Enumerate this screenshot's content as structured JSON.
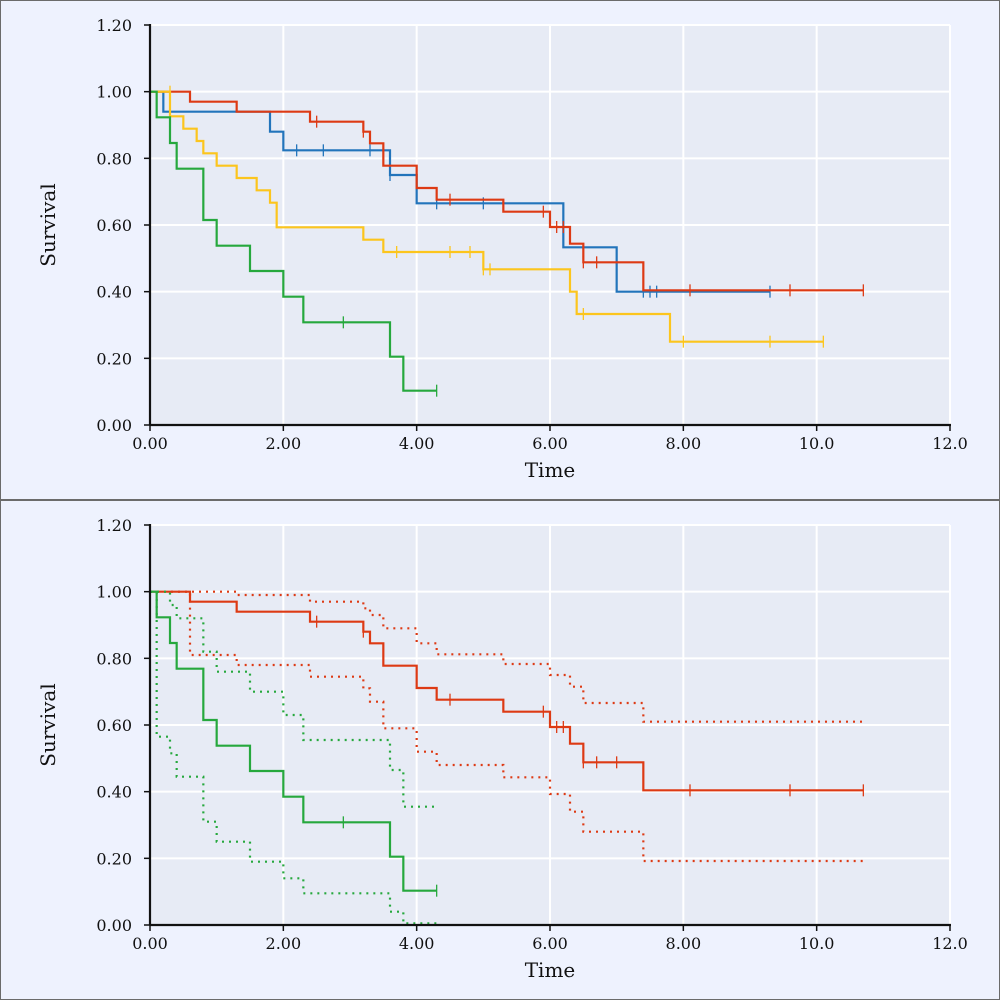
{
  "colors": {
    "background": "#eef2fe",
    "plot_background": "#e7ebf5",
    "grid": "#ffffff",
    "red": "#dd3a14",
    "blue": "#2274bb",
    "yellow": "#fcc51d",
    "green": "#26a83d"
  },
  "chart_data": [
    {
      "type": "line",
      "subtype": "step",
      "xlabel": "Time",
      "ylabel": "Survival",
      "xlim": [
        0,
        12
      ],
      "ylim": [
        0,
        1.2
      ],
      "x_ticks": [
        "0.00",
        "2.00",
        "4.00",
        "6.00",
        "8.00",
        "10.0",
        "12.0"
      ],
      "y_ticks": [
        "0.00",
        "0.20",
        "0.40",
        "0.60",
        "0.80",
        "1.00",
        "1.20"
      ],
      "grid": true,
      "series": [
        {
          "color": "#2274bb",
          "style": "solid",
          "x": [
            0,
            0.2,
            1.8,
            2.0,
            3.6,
            4.0,
            6.2,
            6.5,
            7.0,
            9.3
          ],
          "y": [
            1.0,
            0.94,
            0.88,
            0.824,
            0.75,
            0.665,
            0.533,
            0.533,
            0.4,
            0.4
          ],
          "censored": [
            [
              2.2,
              0.824
            ],
            [
              2.6,
              0.824
            ],
            [
              3.3,
              0.824
            ],
            [
              3.6,
              0.75
            ],
            [
              4.3,
              0.665
            ],
            [
              5.0,
              0.665
            ],
            [
              7.4,
              0.4
            ],
            [
              7.5,
              0.4
            ],
            [
              7.6,
              0.4
            ],
            [
              9.3,
              0.4
            ]
          ]
        },
        {
          "color": "#dd3a14",
          "style": "solid",
          "x": [
            0,
            0.6,
            1.3,
            2.4,
            3.2,
            3.3,
            3.5,
            4.0,
            4.3,
            5.3,
            6.0,
            6.3,
            6.5,
            7.4,
            10.7
          ],
          "y": [
            1.0,
            0.97,
            0.94,
            0.91,
            0.88,
            0.845,
            0.778,
            0.711,
            0.676,
            0.64,
            0.594,
            0.544,
            0.488,
            0.404,
            0.404
          ],
          "censored": [
            [
              2.5,
              0.91
            ],
            [
              3.2,
              0.88
            ],
            [
              4.5,
              0.676
            ],
            [
              5.9,
              0.64
            ],
            [
              6.1,
              0.594
            ],
            [
              6.2,
              0.594
            ],
            [
              6.5,
              0.488
            ],
            [
              6.7,
              0.488
            ],
            [
              8.1,
              0.404
            ],
            [
              9.6,
              0.404
            ],
            [
              10.7,
              0.404
            ]
          ]
        },
        {
          "color": "#fcc51d",
          "style": "solid",
          "x": [
            0,
            0.3,
            0.5,
            0.7,
            0.8,
            1.0,
            1.3,
            1.6,
            1.8,
            1.9,
            3.2,
            3.5,
            5.0,
            6.3,
            6.4,
            7.8,
            10.1
          ],
          "y": [
            1.0,
            0.926,
            0.889,
            0.852,
            0.815,
            0.778,
            0.741,
            0.704,
            0.667,
            0.593,
            0.556,
            0.519,
            0.467,
            0.4,
            0.333,
            0.25,
            0.25
          ],
          "censored": [
            [
              0.3,
              1.0
            ],
            [
              3.7,
              0.519
            ],
            [
              4.5,
              0.519
            ],
            [
              4.8,
              0.519
            ],
            [
              5.0,
              0.467
            ],
            [
              5.1,
              0.467
            ],
            [
              6.5,
              0.333
            ],
            [
              8.0,
              0.25
            ],
            [
              9.3,
              0.25
            ],
            [
              10.1,
              0.25
            ]
          ]
        },
        {
          "color": "#26a83d",
          "style": "solid",
          "x": [
            0,
            0.1,
            0.3,
            0.4,
            0.8,
            1.0,
            1.5,
            2.0,
            2.3,
            3.6,
            3.8,
            4.3
          ],
          "y": [
            1.0,
            0.923,
            0.846,
            0.769,
            0.615,
            0.538,
            0.462,
            0.385,
            0.308,
            0.205,
            0.103,
            0.103
          ],
          "censored": [
            [
              2.9,
              0.308
            ],
            [
              4.3,
              0.103
            ]
          ]
        }
      ]
    },
    {
      "type": "line",
      "subtype": "step",
      "xlabel": "Time",
      "ylabel": "Survival",
      "xlim": [
        0,
        12
      ],
      "ylim": [
        0,
        1.2
      ],
      "x_ticks": [
        "0.00",
        "2.00",
        "4.00",
        "6.00",
        "8.00",
        "10.0",
        "12.0"
      ],
      "y_ticks": [
        "0.00",
        "0.20",
        "0.40",
        "0.60",
        "0.80",
        "1.00",
        "1.20"
      ],
      "grid": true,
      "series": [
        {
          "color": "#dd3a14",
          "style": "solid",
          "x": [
            0,
            0.6,
            1.3,
            2.4,
            3.2,
            3.3,
            3.5,
            4.0,
            4.3,
            5.3,
            6.0,
            6.3,
            6.5,
            7.4,
            10.7
          ],
          "y": [
            1.0,
            0.97,
            0.94,
            0.91,
            0.88,
            0.845,
            0.778,
            0.711,
            0.676,
            0.64,
            0.594,
            0.544,
            0.488,
            0.404,
            0.404
          ],
          "censored": [
            [
              2.5,
              0.91
            ],
            [
              3.2,
              0.88
            ],
            [
              4.5,
              0.676
            ],
            [
              5.9,
              0.64
            ],
            [
              6.1,
              0.594
            ],
            [
              6.2,
              0.594
            ],
            [
              6.5,
              0.488
            ],
            [
              6.7,
              0.488
            ],
            [
              7.0,
              0.488
            ],
            [
              8.1,
              0.404
            ],
            [
              9.6,
              0.404
            ],
            [
              10.7,
              0.404
            ]
          ]
        },
        {
          "color": "#dd3a14",
          "style": "dotted",
          "x": [
            0,
            0.6,
            1.3,
            2.4,
            3.2,
            3.3,
            3.5,
            4.0,
            4.3,
            5.3,
            6.0,
            6.3,
            6.5,
            7.4,
            10.7
          ],
          "y": [
            1.0,
            1.0,
            0.99,
            0.97,
            0.95,
            0.93,
            0.89,
            0.845,
            0.812,
            0.783,
            0.75,
            0.715,
            0.666,
            0.61,
            0.61
          ]
        },
        {
          "color": "#dd3a14",
          "style": "dotted",
          "x": [
            0,
            0.6,
            1.3,
            2.4,
            3.2,
            3.3,
            3.5,
            4.0,
            4.3,
            5.3,
            6.0,
            6.3,
            6.5,
            7.4,
            10.7
          ],
          "y": [
            1.0,
            0.81,
            0.78,
            0.745,
            0.71,
            0.67,
            0.59,
            0.52,
            0.48,
            0.443,
            0.393,
            0.34,
            0.28,
            0.192,
            0.192
          ]
        },
        {
          "color": "#26a83d",
          "style": "solid",
          "x": [
            0,
            0.1,
            0.3,
            0.4,
            0.8,
            1.0,
            1.5,
            2.0,
            2.3,
            3.6,
            3.8,
            4.3
          ],
          "y": [
            1.0,
            0.923,
            0.846,
            0.769,
            0.615,
            0.538,
            0.462,
            0.385,
            0.308,
            0.205,
            0.103,
            0.103
          ],
          "censored": [
            [
              2.9,
              0.308
            ],
            [
              4.3,
              0.103
            ]
          ]
        },
        {
          "color": "#26a83d",
          "style": "dotted",
          "x": [
            0,
            0.1,
            0.3,
            0.4,
            0.8,
            1.0,
            1.5,
            2.0,
            2.3,
            3.6,
            3.8,
            4.3
          ],
          "y": [
            1.0,
            1.0,
            0.96,
            0.92,
            0.82,
            0.76,
            0.7,
            0.63,
            0.555,
            0.465,
            0.355,
            0.355
          ]
        },
        {
          "color": "#26a83d",
          "style": "dotted",
          "x": [
            0,
            0.1,
            0.3,
            0.4,
            0.8,
            1.0,
            1.5,
            2.0,
            2.3,
            3.6,
            3.8,
            4.3
          ],
          "y": [
            1.0,
            0.565,
            0.515,
            0.445,
            0.31,
            0.25,
            0.19,
            0.14,
            0.095,
            0.04,
            0.005,
            0.005
          ]
        }
      ]
    }
  ]
}
